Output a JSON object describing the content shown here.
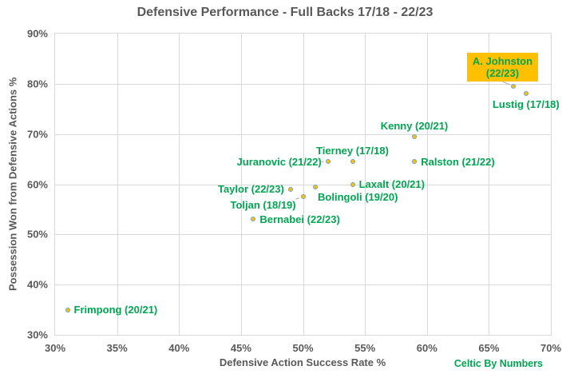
{
  "watermark": "Celtic By Numbers",
  "colors": {
    "green": "#00a651",
    "highlight_bg": "#ffc000",
    "marker_fill": "#ffc000",
    "marker_border": "#70a0cf",
    "axis_text": "#595959",
    "grid": "#d9d9d9",
    "leader": "#a3a3a3",
    "background": "#ffffff"
  },
  "chart_data": {
    "type": "scatter",
    "title": "Defensive Performance - Full Backs 17/18 - 22/23",
    "xlabel": "Defensive Action Success Rate %",
    "ylabel": "Possession Won from Defensive Actions %",
    "xlim": [
      30,
      70
    ],
    "ylim": [
      30,
      90
    ],
    "x_ticks": [
      "30%",
      "35%",
      "40%",
      "45%",
      "50%",
      "55%",
      "60%",
      "65%",
      "70%"
    ],
    "y_ticks": [
      "90%",
      "80%",
      "70%",
      "60%",
      "50%",
      "40%",
      "30%"
    ],
    "x_gridlines": [
      35,
      40,
      45,
      50,
      55,
      60,
      65
    ],
    "y_gridlines": [
      40,
      50,
      60,
      70,
      80
    ],
    "grid": true,
    "legend": "none",
    "points": [
      {
        "label": "A. Johnston (22/23)",
        "label_lines": [
          "A. Johnston",
          "(22/23)"
        ],
        "x": 67,
        "y": 79.5,
        "label_pos": "box-above-left",
        "highlight": true,
        "leader": true
      },
      {
        "label": "Lustig (17/18)",
        "x": 68,
        "y": 78,
        "label_pos": "below"
      },
      {
        "label": "Kenny (20/21)",
        "x": 59,
        "y": 69.5,
        "label_pos": "above"
      },
      {
        "label": "Tierney (17/18)",
        "x": 54,
        "y": 64.5,
        "label_pos": "above"
      },
      {
        "label": "Ralston (21/22)",
        "x": 59,
        "y": 64.5,
        "label_pos": "right"
      },
      {
        "label": "Juranovic (21/22)",
        "x": 52,
        "y": 64.5,
        "label_pos": "left",
        "leader": true
      },
      {
        "label": "Laxalt (20/21)",
        "x": 54,
        "y": 60,
        "label_pos": "right"
      },
      {
        "label": "Bolingoli (19/20)",
        "x": 51,
        "y": 59.5,
        "label_pos": "below-right"
      },
      {
        "label": "Taylor (22/23)",
        "x": 49,
        "y": 59,
        "label_pos": "left"
      },
      {
        "label": "Toljan (18/19)",
        "x": 50,
        "y": 57.5,
        "label_pos": "below-left",
        "leader": true
      },
      {
        "label": "Bernabei (22/23)",
        "x": 46,
        "y": 53,
        "label_pos": "right"
      },
      {
        "label": "Frimpong (20/21)",
        "x": 31,
        "y": 35,
        "label_pos": "right"
      }
    ]
  }
}
